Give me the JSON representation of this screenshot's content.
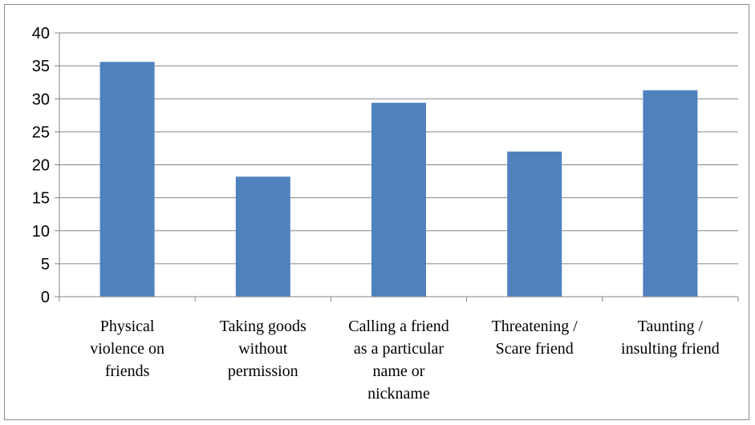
{
  "chart_data": {
    "type": "bar",
    "categories": [
      [
        "Physical",
        "violence on",
        "friends"
      ],
      [
        "Taking goods",
        "without",
        "permission"
      ],
      [
        "Calling a friend",
        "as a particular",
        "name or",
        "nickname"
      ],
      [
        "Threatening /",
        "Scare friend"
      ],
      [
        "Taunting /",
        "insulting friend"
      ]
    ],
    "values": [
      35.6,
      18.2,
      29.4,
      22.0,
      31.3
    ],
    "ylim": [
      0,
      40
    ],
    "yticks": [
      0,
      5,
      10,
      15,
      20,
      25,
      30,
      35,
      40
    ],
    "grid": true,
    "legend": "none",
    "bar_color": "#4f81bd",
    "grid_color": "#868686",
    "axis_color": "#868686"
  }
}
